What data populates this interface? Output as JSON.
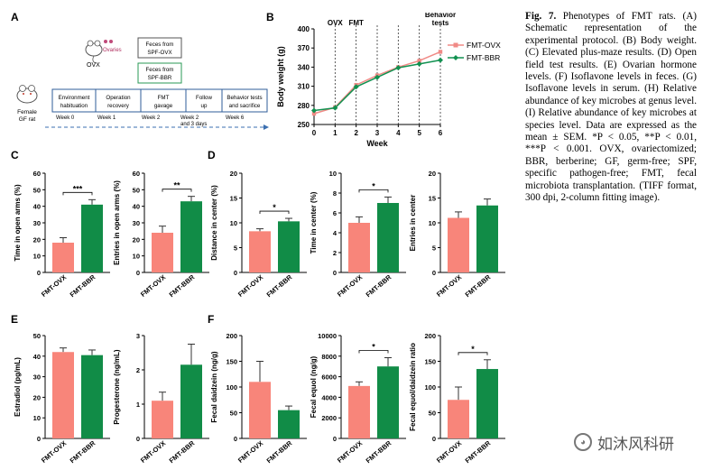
{
  "panel_labels": [
    "A",
    "B",
    "C",
    "D",
    "E",
    "F"
  ],
  "schematic": {
    "feces_boxes": [
      "Feces from\nSPF-OVX",
      "Feces from\nSPF-BBR"
    ],
    "ovx_label": "OVX",
    "ovaries_label": "Ovaries",
    "rat_label": "Female\nGF rat",
    "stages": [
      "Environment\nhabituation",
      "Operation\nrecovery",
      "FMT\ngavage",
      "Follow\nup",
      "Behavior tests\nand sacrifice"
    ],
    "weeks": [
      "Week 0",
      "Week 1",
      "Week 2",
      "Week 2\nand 3 days",
      "Week 6"
    ]
  },
  "caption": {
    "fig_label": "Fig. 7.",
    "text": " Phenotypes of FMT rats. (A) Schematic representation of the experimental protocol. (B) Body weight. (C) Elevated plus-maze results. (D) Open field test results. (E) Ovarian hormone levels. (F) Isoflavone levels in feces. (G) Isoflavone levels in serum. (H) Relative abundance of key microbes at genus level. (I) Relative abundance of key microbes at species level. Data are expressed as the mean ± SEM. *P < 0.05, **P < 0.01, ***P < 0.001. OVX, ovariectomized; BBR, berberine; GF, germ-free; SPF, specific pathogen-free; FMT, fecal microbiota transplantation. (TIFF format, 300 dpi, 2-column fitting image)."
  },
  "watermark": "如沐风科研",
  "colors": {
    "ovx": "#f8857a",
    "bbr": "#118c47",
    "ovx_line": "#f08a86",
    "bbr_line": "#119150"
  },
  "chart_data": [
    {
      "id": "B",
      "type": "line",
      "title": "",
      "xlabel": "Week",
      "ylabel": "Body weight (g)",
      "x": [
        0,
        1,
        2,
        3,
        4,
        5,
        6
      ],
      "xticks": [
        "0",
        "1",
        "2",
        "3",
        "4",
        "5",
        "6"
      ],
      "ylim": [
        250,
        400
      ],
      "yticks": [
        "250",
        "280",
        "310",
        "340",
        "370",
        "400"
      ],
      "vlines": [
        1,
        2,
        3,
        4,
        5,
        6
      ],
      "top_labels": [
        {
          "x": 1,
          "text": "OVX"
        },
        {
          "x": 2,
          "text": "FMT"
        },
        {
          "x": 6,
          "text": "Behavior\ntests"
        }
      ],
      "series": [
        {
          "name": "FMT-OVX",
          "values": [
            267,
            277,
            312,
            327,
            340,
            350,
            364
          ]
        },
        {
          "name": "FMT-BBR",
          "values": [
            272,
            276,
            309,
            324,
            339,
            345,
            351
          ]
        }
      ]
    },
    {
      "id": "C1",
      "type": "bar",
      "ylabel": "Time in open arms (%)",
      "categories": [
        "FMT-OVX",
        "FMT-BBR"
      ],
      "values": [
        18,
        41
      ],
      "errors": [
        3,
        3
      ],
      "ylim": [
        0,
        60
      ],
      "yticks": [
        "0",
        "10",
        "20",
        "30",
        "40",
        "50",
        "60"
      ],
      "sig": "***"
    },
    {
      "id": "C2",
      "type": "bar",
      "ylabel": "Entries in open arms (%)",
      "categories": [
        "FMT-OVX",
        "FMT-BBR"
      ],
      "values": [
        24,
        43
      ],
      "errors": [
        4,
        3
      ],
      "ylim": [
        0,
        60
      ],
      "yticks": [
        "0",
        "10",
        "20",
        "30",
        "40",
        "50",
        "60"
      ],
      "sig": "**"
    },
    {
      "id": "D1",
      "type": "bar",
      "ylabel": "Distance in center (%)",
      "categories": [
        "FMT-OVX",
        "FMT-BBR"
      ],
      "values": [
        8.3,
        10.3
      ],
      "errors": [
        0.5,
        0.6
      ],
      "ylim": [
        0,
        20
      ],
      "yticks": [
        "0",
        "5",
        "10",
        "15",
        "20"
      ],
      "sig": "*"
    },
    {
      "id": "D2",
      "type": "bar",
      "ylabel": "Time in center (%)",
      "categories": [
        "FMT-OVX",
        "FMT-BBR"
      ],
      "values": [
        5,
        7
      ],
      "errors": [
        0.6,
        0.6
      ],
      "ylim": [
        0,
        10
      ],
      "yticks": [
        "0",
        "2",
        "4",
        "6",
        "8",
        "10"
      ],
      "sig": "*"
    },
    {
      "id": "D3",
      "type": "bar",
      "ylabel": "Entries in center",
      "categories": [
        "FMT-OVX",
        "FMT-BBR"
      ],
      "values": [
        11,
        13.5
      ],
      "errors": [
        1.2,
        1.3
      ],
      "ylim": [
        0,
        20
      ],
      "yticks": [
        "0",
        "5",
        "10",
        "15",
        "20"
      ],
      "sig": ""
    },
    {
      "id": "E1",
      "type": "bar",
      "ylabel": "Estradiol (pg/mL)",
      "categories": [
        "FMT-OVX",
        "FMT-BBR"
      ],
      "values": [
        42,
        40.5
      ],
      "errors": [
        2,
        2.5
      ],
      "ylim": [
        0,
        50
      ],
      "yticks": [
        "0",
        "10",
        "20",
        "30",
        "40",
        "50"
      ],
      "sig": ""
    },
    {
      "id": "E2",
      "type": "bar",
      "ylabel": "Progesterone (ng/mL)",
      "categories": [
        "FMT-OVX",
        "FMT-BBR"
      ],
      "values": [
        1.1,
        2.15
      ],
      "errors": [
        0.25,
        0.6
      ],
      "ylim": [
        0,
        3
      ],
      "yticks": [
        "0",
        "1",
        "2",
        "3"
      ],
      "sig": ""
    },
    {
      "id": "F1",
      "type": "bar",
      "ylabel": "Fecal daidzein (ng/g)",
      "categories": [
        "FMT-OVX",
        "FMT-BBR"
      ],
      "values": [
        110,
        55
      ],
      "errors": [
        40,
        8
      ],
      "ylim": [
        0,
        200
      ],
      "yticks": [
        "0",
        "50",
        "100",
        "150",
        "200"
      ],
      "sig": ""
    },
    {
      "id": "F2",
      "type": "bar",
      "ylabel": "Fecal equol (ng/g)",
      "categories": [
        "FMT-OVX",
        "FMT-BBR"
      ],
      "values": [
        5100,
        7000
      ],
      "errors": [
        400,
        850
      ],
      "ylim": [
        0,
        10000
      ],
      "yticks": [
        "0",
        "2000",
        "4000",
        "6000",
        "8000",
        "10000"
      ],
      "sig": "*"
    },
    {
      "id": "F3",
      "type": "bar",
      "ylabel": "Fecal equol/daidzein ratio",
      "categories": [
        "FMT-OVX",
        "FMT-BBR"
      ],
      "values": [
        75,
        135
      ],
      "errors": [
        25,
        18
      ],
      "ylim": [
        0,
        200
      ],
      "yticks": [
        "0",
        "50",
        "100",
        "150",
        "200"
      ],
      "sig": "*"
    }
  ]
}
